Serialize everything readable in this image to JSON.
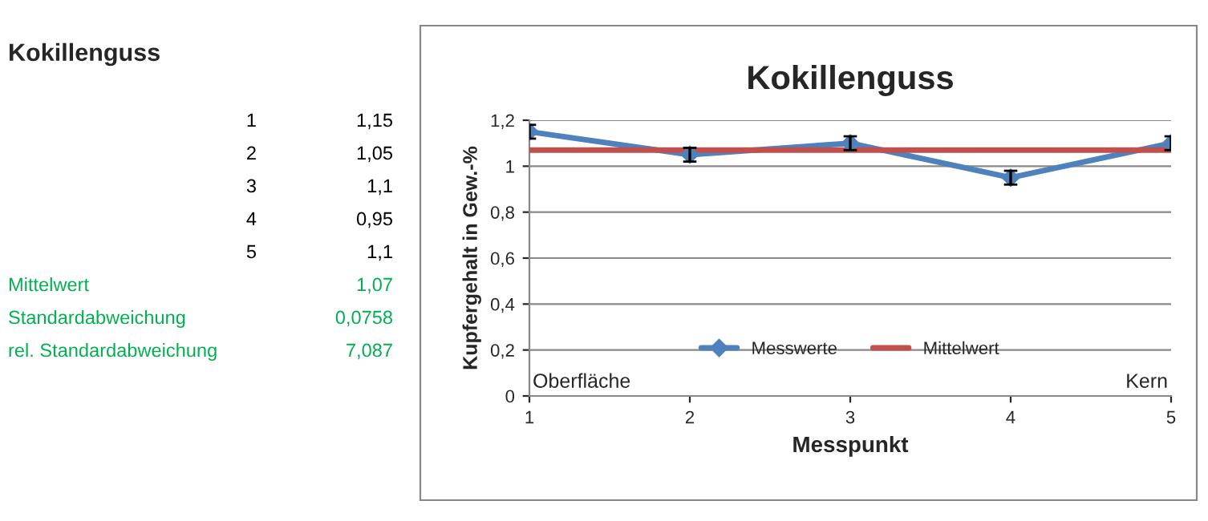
{
  "chart_data": {
    "type": "line",
    "title": "Kokillenguss",
    "xlabel": "Messpunkt",
    "ylabel": "Kupfergehalt in Gew.-%",
    "x": [
      1,
      2,
      3,
      4,
      5
    ],
    "series": [
      {
        "name": "Messwerte",
        "color": "#4f81bd",
        "values": [
          1.15,
          1.05,
          1.1,
          0.95,
          1.1
        ],
        "errors": [
          0.03,
          0.03,
          0.03,
          0.03,
          0.03
        ],
        "marker": "diamond"
      },
      {
        "name": "Mittelwert",
        "color": "#c0504d",
        "x": [
          1,
          5
        ],
        "values": [
          1.07,
          1.07
        ],
        "marker": "none"
      }
    ],
    "xlim": [
      1,
      5
    ],
    "xticks": [
      1,
      2,
      3,
      4,
      5
    ],
    "ylim": [
      0,
      1.2
    ],
    "yticks": [
      0,
      {
        "value": 0.2,
        "label": "0,2"
      },
      {
        "value": 0.4,
        "label": "0,4"
      },
      {
        "value": 0.6,
        "label": "0,6"
      },
      {
        "value": 0.8,
        "label": "0,8"
      },
      1,
      {
        "value": 1.2,
        "label": "1,2"
      }
    ],
    "grid": "y",
    "legend": "bottom",
    "annotations": [
      "Oberfläche",
      "Kern",
      "Kokillenguss",
      "1",
      "1,15",
      "2",
      "1,05",
      "3",
      "1,1",
      "4",
      "0,95",
      "5",
      "1,1",
      "Mittelwert",
      "1,07",
      "Standardabweichung",
      "0,0758",
      "rel. Standardabweichung",
      "7,087"
    ]
  }
}
